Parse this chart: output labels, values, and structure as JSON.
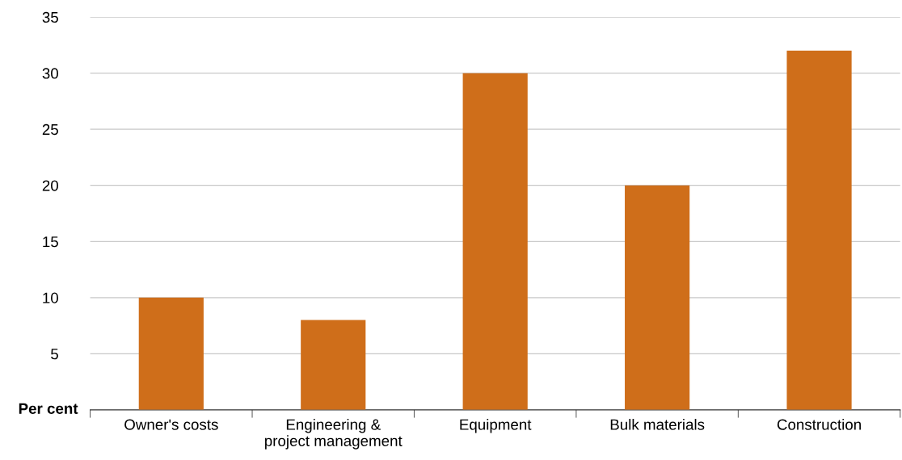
{
  "chart_data": {
    "type": "bar",
    "ylabel": "Per cent",
    "categories": [
      "Owner's costs",
      "Engineering &\nproject management",
      "Equipment",
      "Bulk materials",
      "Construction"
    ],
    "values": [
      10,
      8,
      30,
      20,
      32
    ],
    "color": "#cf6e1a",
    "ylim": [
      0,
      35
    ],
    "yticks": [
      5,
      10,
      15,
      20,
      25,
      30,
      35
    ],
    "grid": "y",
    "legend": false
  }
}
